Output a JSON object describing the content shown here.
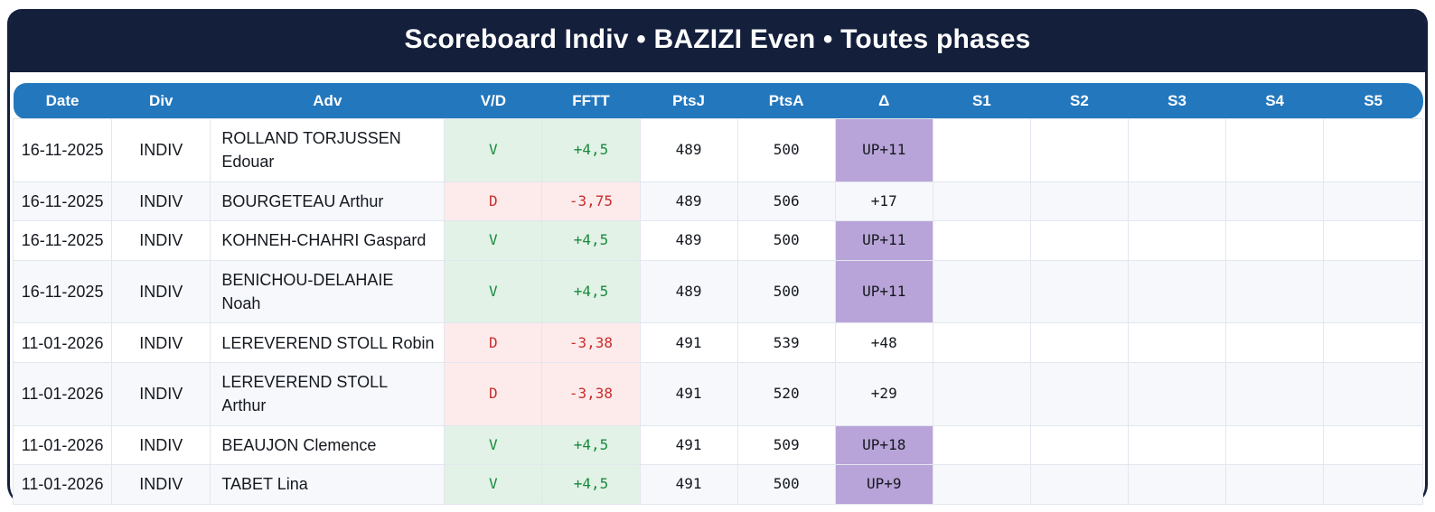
{
  "title": "Scoreboard Indiv • BAZIZI Even • Toutes phases",
  "colors": {
    "frame_navy": "#141f3c",
    "header_blue": "#2377bd",
    "win_bg": "#e2f2e6",
    "win_text": "#178a3d",
    "loss_bg": "#fdebeb",
    "loss_text": "#c82d2d",
    "delta_up_bg": "#b8a4d8",
    "row_stripe": "#f6f8fc"
  },
  "table": {
    "columns": [
      "Date",
      "Div",
      "Adv",
      "V/D",
      "FFTT",
      "PtsJ",
      "PtsA",
      "Δ",
      "S1",
      "S2",
      "S3",
      "S4",
      "S5"
    ],
    "rows": [
      {
        "date": "16-11-2025",
        "div": "INDIV",
        "adv": "ROLLAND TORJUSSEN\nEdouar",
        "vd": "V",
        "fftt": "+4,5",
        "ptsj": "489",
        "ptsa": "500",
        "delta": "UP+11",
        "result": "win",
        "delta_up": true,
        "sets": [
          "",
          "",
          "",
          "",
          ""
        ]
      },
      {
        "date": "16-11-2025",
        "div": "INDIV",
        "adv": "BOURGETEAU Arthur",
        "vd": "D",
        "fftt": "-3,75",
        "ptsj": "489",
        "ptsa": "506",
        "delta": "+17",
        "result": "loss",
        "delta_up": false,
        "sets": [
          "",
          "",
          "",
          "",
          ""
        ]
      },
      {
        "date": "16-11-2025",
        "div": "INDIV",
        "adv": "KOHNEH-CHAHRI Gaspard",
        "vd": "V",
        "fftt": "+4,5",
        "ptsj": "489",
        "ptsa": "500",
        "delta": "UP+11",
        "result": "win",
        "delta_up": true,
        "sets": [
          "",
          "",
          "",
          "",
          ""
        ]
      },
      {
        "date": "16-11-2025",
        "div": "INDIV",
        "adv": "BENICHOU-DELAHAIE\nNoah",
        "vd": "V",
        "fftt": "+4,5",
        "ptsj": "489",
        "ptsa": "500",
        "delta": "UP+11",
        "result": "win",
        "delta_up": true,
        "sets": [
          "",
          "",
          "",
          "",
          ""
        ]
      },
      {
        "date": "11-01-2026",
        "div": "INDIV",
        "adv": "LEREVEREND STOLL Robin",
        "vd": "D",
        "fftt": "-3,38",
        "ptsj": "491",
        "ptsa": "539",
        "delta": "+48",
        "result": "loss",
        "delta_up": false,
        "sets": [
          "",
          "",
          "",
          "",
          ""
        ]
      },
      {
        "date": "11-01-2026",
        "div": "INDIV",
        "adv": "LEREVEREND STOLL\nArthur",
        "vd": "D",
        "fftt": "-3,38",
        "ptsj": "491",
        "ptsa": "520",
        "delta": "+29",
        "result": "loss",
        "delta_up": false,
        "sets": [
          "",
          "",
          "",
          "",
          ""
        ]
      },
      {
        "date": "11-01-2026",
        "div": "INDIV",
        "adv": "BEAUJON Clemence",
        "vd": "V",
        "fftt": "+4,5",
        "ptsj": "491",
        "ptsa": "509",
        "delta": "UP+18",
        "result": "win",
        "delta_up": true,
        "sets": [
          "",
          "",
          "",
          "",
          ""
        ]
      },
      {
        "date": "11-01-2026",
        "div": "INDIV",
        "adv": "TABET Lina",
        "vd": "V",
        "fftt": "+4,5",
        "ptsj": "491",
        "ptsa": "500",
        "delta": "UP+9",
        "result": "win",
        "delta_up": true,
        "sets": [
          "",
          "",
          "",
          "",
          ""
        ]
      }
    ]
  }
}
